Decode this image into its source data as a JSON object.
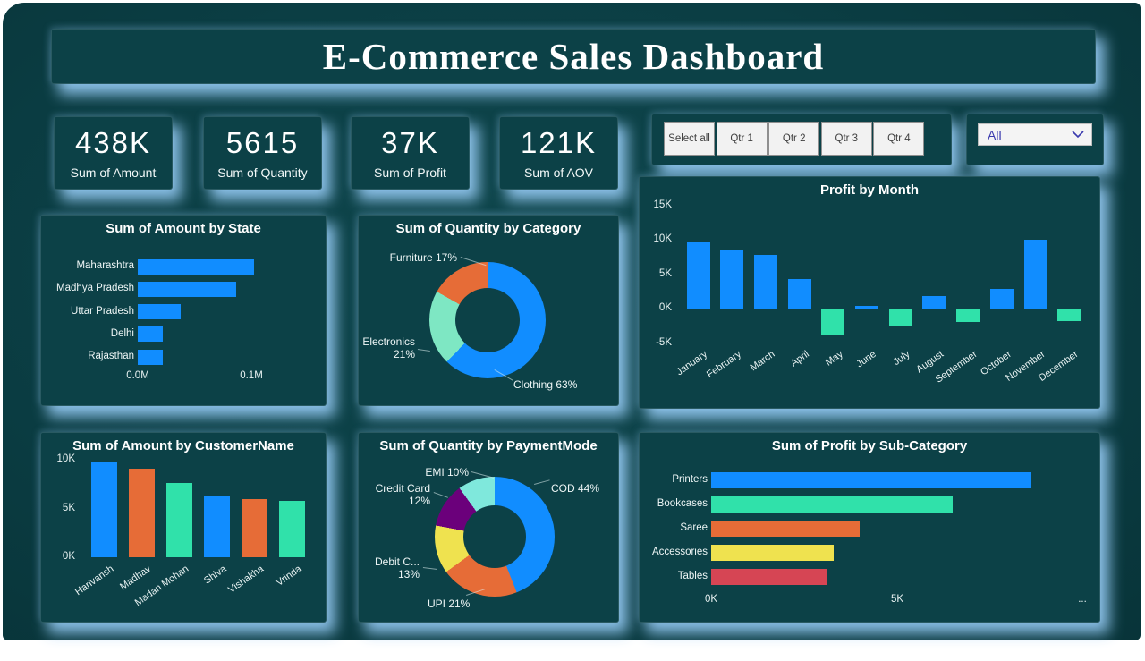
{
  "page": {
    "title": "E-Commerce Sales Dashboard"
  },
  "kpis": [
    {
      "value": "438K",
      "label": "Sum of Amount"
    },
    {
      "value": "5615",
      "label": "Sum of Quantity"
    },
    {
      "value": "37K",
      "label": "Sum of Profit"
    },
    {
      "value": "121K",
      "label": "Sum of AOV"
    }
  ],
  "quarter_slicer": {
    "buttons": [
      "Select all",
      "Qtr 1",
      "Qtr 2",
      "Qtr 3",
      "Qtr 4"
    ]
  },
  "dropdown": {
    "selected": "All"
  },
  "colors": {
    "canvas": "#0b3e44",
    "panel": "#0c4147",
    "glow": "#94c9f2",
    "blue": "#118DFF",
    "mint": "#30E1AA",
    "mint_light": "#7EE7C3",
    "teal_light": "#7FE8DC",
    "orange": "#E66C37",
    "yellow": "#EFE24F",
    "purple": "#6B007B",
    "red": "#D64554",
    "slicer_text": "#404040",
    "dropdown_text": "#3a3aae"
  },
  "chart_data": [
    {
      "id": "amount_by_state",
      "type": "bar",
      "orientation": "horizontal",
      "title": "Sum of Amount by State",
      "categories": [
        "Maharashtra",
        "Madhya Pradesh",
        "Uttar Pradesh",
        "Delhi",
        "Rajasthan"
      ],
      "values": [
        0.102,
        0.087,
        0.038,
        0.022,
        0.022
      ],
      "unit": "M",
      "xticks": [
        "0.0M",
        "0.1M"
      ],
      "xtick_values": [
        0,
        0.1
      ],
      "xlim": [
        0,
        0.15
      ],
      "bar_color": "#118DFF",
      "grid": false
    },
    {
      "id": "quantity_by_category",
      "type": "donut",
      "title": "Sum of Quantity by Category",
      "slices": [
        {
          "label": "Clothing",
          "pct": 63,
          "color": "#118DFF"
        },
        {
          "label": "Electronics",
          "pct": 21,
          "color": "#7EE7C3"
        },
        {
          "label": "Furniture",
          "pct": 17,
          "color": "#E66C37"
        }
      ]
    },
    {
      "id": "profit_by_month",
      "type": "bar",
      "orientation": "vertical",
      "title": "Profit by Month",
      "categories": [
        "January",
        "February",
        "March",
        "April",
        "May",
        "June",
        "July",
        "August",
        "September",
        "October",
        "November",
        "December"
      ],
      "values": [
        9.8,
        8.5,
        7.8,
        4.3,
        -3.7,
        0.4,
        -2.3,
        1.8,
        -1.8,
        2.8,
        10.0,
        -1.7
      ],
      "unit": "K",
      "yticks": [
        "15K",
        "10K",
        "5K",
        "0K",
        "-5K"
      ],
      "ytick_values": [
        15,
        10,
        5,
        0,
        -5
      ],
      "ylim": [
        -5,
        15
      ],
      "positive_color": "#118DFF",
      "negative_color": "#30E1AA",
      "grid": false
    },
    {
      "id": "amount_by_customer",
      "type": "bar",
      "orientation": "vertical",
      "title": "Sum of Amount by CustomerName",
      "categories": [
        "Harivansh",
        "Madhav",
        "Madan Mohan",
        "Shiva",
        "Vishakha",
        "Vrinda"
      ],
      "values": [
        9.7,
        9.1,
        7.6,
        6.3,
        6.0,
        5.8
      ],
      "unit": "K",
      "yticks": [
        "10K",
        "5K",
        "0K"
      ],
      "ytick_values": [
        10,
        5,
        0
      ],
      "ylim": [
        0,
        10.5
      ],
      "bar_colors": [
        "#118DFF",
        "#E66C37",
        "#30E1AA",
        "#118DFF",
        "#E66C37",
        "#30E1AA"
      ],
      "grid": false
    },
    {
      "id": "quantity_by_paymentmode",
      "type": "donut",
      "title": "Sum of Quantity by PaymentMode",
      "slices": [
        {
          "label": "COD",
          "pct": 44,
          "color": "#118DFF"
        },
        {
          "label": "UPI",
          "pct": 21,
          "color": "#E66C37"
        },
        {
          "label": "Debit C...",
          "pct": 13,
          "color": "#EFE24F"
        },
        {
          "label": "Credit Card",
          "pct": 12,
          "color": "#6B007B"
        },
        {
          "label": "EMI",
          "pct": 10,
          "color": "#7FE8DC"
        }
      ]
    },
    {
      "id": "profit_by_subcategory",
      "type": "bar",
      "orientation": "horizontal",
      "title": "Sum of Profit by Sub-Category",
      "categories": [
        "Printers",
        "Bookcases",
        "Saree",
        "Accessories",
        "Tables"
      ],
      "values": [
        8.6,
        6.5,
        4.0,
        3.3,
        3.1
      ],
      "unit": "K",
      "xticks": [
        "0K",
        "5K",
        "..."
      ],
      "xtick_values": [
        0,
        5,
        null
      ],
      "xlim": [
        0,
        10
      ],
      "bar_colors": [
        "#118DFF",
        "#30E1AA",
        "#E66C37",
        "#EFE24F",
        "#D64554"
      ],
      "grid": false
    }
  ]
}
